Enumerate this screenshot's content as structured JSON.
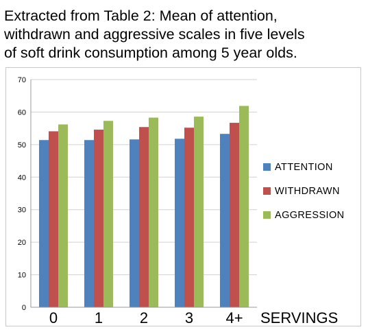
{
  "title_lines": [
    "Extracted from Table 2:  Mean of attention,",
    "withdrawn and aggressive scales in five levels",
    "of soft drink consumption among 5 year olds."
  ],
  "chart_data": {
    "type": "bar",
    "title": "Extracted from Table 2:  Mean of attention, withdrawn and aggressive scales in five levels of soft drink consumption among 5 year olds.",
    "categories": [
      "0",
      "1",
      "2",
      "3",
      "4+"
    ],
    "xlabel": "SERVINGS",
    "ylabel": "",
    "ylim": [
      0,
      70
    ],
    "yticks": [
      "0",
      "10",
      "20",
      "30",
      "40",
      "50",
      "60",
      "70"
    ],
    "grid": true,
    "legend_position": "right",
    "series": [
      {
        "name": "ATTENTION",
        "color": "#4f81bd",
        "values": [
          51.4,
          51.4,
          51.6,
          51.8,
          53.3
        ]
      },
      {
        "name": "WITHDRAWN",
        "color": "#c0504d",
        "values": [
          54.1,
          54.6,
          55.4,
          55.2,
          56.7
        ]
      },
      {
        "name": "AGGRESSION",
        "color": "#9bbb59",
        "values": [
          56.2,
          57.3,
          58.3,
          58.6,
          61.9
        ]
      }
    ]
  }
}
